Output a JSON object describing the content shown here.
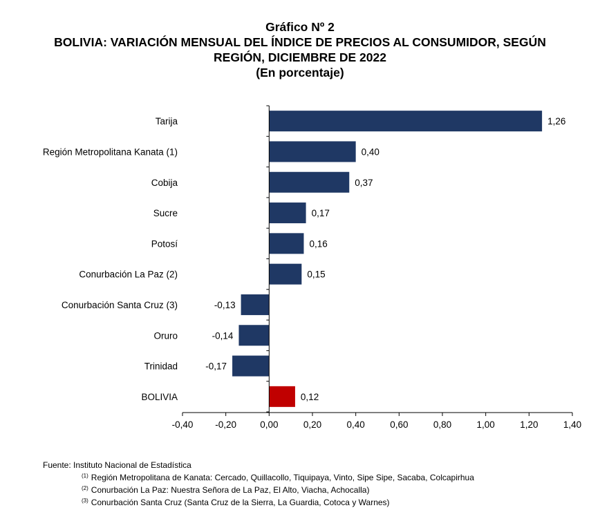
{
  "header": {
    "line1": "Gráfico Nº 2",
    "line2": "BOLIVIA: VARIACIÓN MENSUAL DEL ÍNDICE DE PRECIOS AL CONSUMIDOR, SEGÚN",
    "line3": "REGIÓN, DICIEMBRE DE 2022",
    "line4": "(En porcentaje)"
  },
  "chart_data": {
    "type": "bar",
    "orientation": "horizontal",
    "title": "BOLIVIA: VARIACIÓN MENSUAL DEL ÍNDICE DE PRECIOS AL CONSUMIDOR, SEGÚN REGIÓN, DICIEMBRE DE 2022",
    "subtitle": "(En porcentaje)",
    "xlabel": "",
    "ylabel": "",
    "categories": [
      "Tarija",
      "Región Metropolitana Kanata (1)",
      "Cobija",
      "Sucre",
      "Potosí",
      "Conurbación La Paz (2)",
      "Conurbación Santa Cruz (3)",
      "Oruro",
      "Trinidad",
      "BOLIVIA"
    ],
    "values": [
      1.26,
      0.4,
      0.37,
      0.17,
      0.16,
      0.15,
      -0.13,
      -0.14,
      -0.17,
      0.12
    ],
    "value_labels": [
      "1,26",
      "0,40",
      "0,37",
      "0,17",
      "0,16",
      "0,15",
      "-0,13",
      "-0,14",
      "-0,17",
      "0,12"
    ],
    "xlim": [
      -0.4,
      1.4
    ],
    "ticks": [
      -0.4,
      -0.2,
      0.0,
      0.2,
      0.4,
      0.6,
      0.8,
      1.0,
      1.2,
      1.4
    ],
    "tick_labels": [
      "-0,40",
      "-0,20",
      "0,00",
      "0,20",
      "0,40",
      "0,60",
      "0,80",
      "1,00",
      "1,20",
      "1,40"
    ],
    "grid": false,
    "legend": "none",
    "colors": {
      "bar": "#1f3864",
      "highlight": "#c00000",
      "axis": "#000000"
    },
    "highlight_index": 9
  },
  "footer": {
    "source": "Fuente: Instituto Nacional de Estadística",
    "notes": [
      {
        "mark": "(1)",
        "text": "Región Metropolitana de Kanata: Cercado, Quillacollo, Tiquipaya, Vinto, Sipe Sipe, Sacaba, Colcapirhua"
      },
      {
        "mark": "(2)",
        "text": "Conurbación La Paz: Nuestra Señora de La Paz, El Alto, Viacha, Achocalla)"
      },
      {
        "mark": "(3)",
        "text": "Conurbación Santa Cruz (Santa Cruz de la Sierra, La Guardia, Cotoca y Warnes)"
      }
    ]
  }
}
